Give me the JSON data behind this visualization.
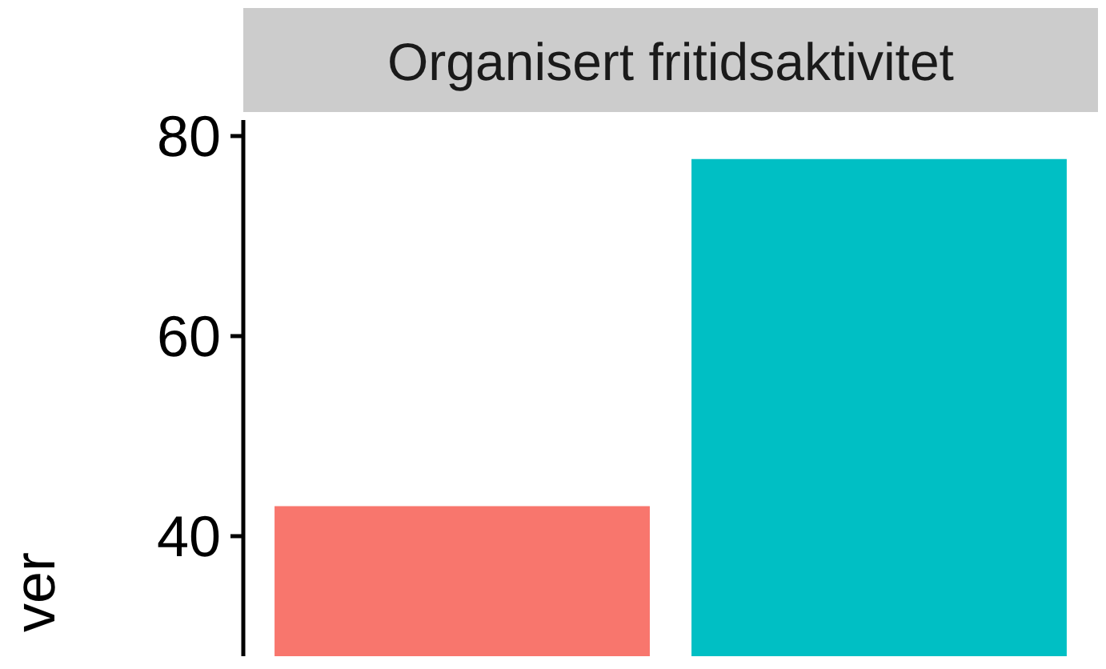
{
  "chart_data": {
    "type": "bar",
    "title": "Organisert fritidsaktivitet",
    "ylabel": "ver",
    "categories": [
      null,
      null
    ],
    "values": [
      43,
      77.7
    ],
    "colors": [
      "#f8766d",
      "#00bfc4"
    ],
    "ylim": [
      28,
      81.6
    ],
    "yticks": [
      40,
      60,
      80
    ],
    "grid": false
  }
}
